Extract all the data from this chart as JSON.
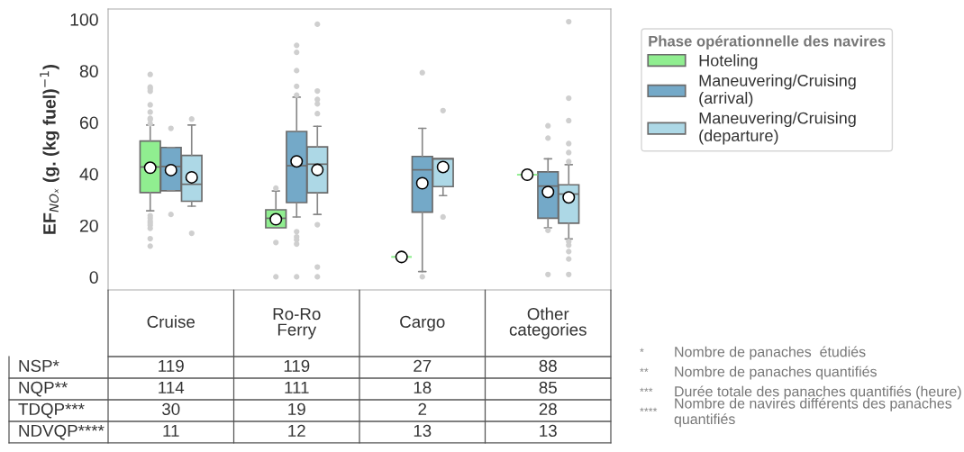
{
  "chart_data": {
    "type": "box",
    "categories": [
      "Cruise",
      "Ro-Ro\nFerry",
      "Cargo",
      "Other\ncategories"
    ],
    "ylabel": "EF$_{NOₓ}$ (g. (kg fuel)$^{−1}$)",
    "legend_title": "Phase opérationnelle des navires",
    "legend": "right",
    "grid": false,
    "ylim": [
      -5,
      104
    ],
    "yticks": [
      0,
      20,
      40,
      60,
      80,
      100
    ],
    "series": [
      {
        "name": "Hoteling",
        "color": "#90ee90",
        "boxes": [
          {
            "low": 25.7,
            "q1": 32.8,
            "median": 42.7,
            "q3": 52.8,
            "high": 59.0,
            "mean": 42.4,
            "outliers": [
              78.6,
              73.7,
              73.1,
              72.1,
              66.8,
              64.0,
              61.6,
              61.1,
              59.5,
              23.8,
              22.9,
              21.7,
              20.9,
              20.1,
              18.9,
              14.9,
              12.0
            ]
          },
          {
            "low": 19.1,
            "q1": 19.1,
            "median": 22.8,
            "q3": 26.1,
            "high": 33.4,
            "mean": 22.4,
            "outliers": [
              34.5,
              13.4,
              0.1
            ]
          },
          {
            "low": 7.8,
            "q1": 7.8,
            "median": 7.8,
            "q3": 7.8,
            "high": 7.8,
            "mean": 7.8
          },
          {
            "low": 39.7,
            "q1": 39.7,
            "median": 39.7,
            "q3": 39.7,
            "high": 39.7,
            "mean": 39.7
          }
        ]
      },
      {
        "name": "Maneuvering/Cruising\n(arrival)",
        "color": "#74a9c8",
        "boxes": [
          {
            "low": 33.5,
            "q1": 33.5,
            "median": 42.9,
            "q3": 50.3,
            "high": 50.3,
            "mean": 41.5,
            "outliers": [
              57.7,
              24.3
            ]
          },
          {
            "low": 23.3,
            "q1": 28.9,
            "median": 43.2,
            "q3": 56.5,
            "high": 69.8,
            "mean": 44.9,
            "outliers": [
              89.9,
              87.2,
              80.1,
              74.0,
              70.6,
              17.6,
              15.6,
              14.5,
              12.8,
              0.1
            ]
          },
          {
            "low": 2.1,
            "q1": 25.2,
            "median": 41.6,
            "q3": 46.8,
            "high": 57.7,
            "mean": 36.4,
            "outliers": [
              79.3,
              0.1
            ]
          },
          {
            "low": 19.1,
            "q1": 22.8,
            "median": 35.3,
            "q3": 40.8,
            "high": 45.9,
            "mean": 33.0,
            "outliers": [
              58.7,
              53.9,
              18.1,
              1.0
            ]
          }
        ]
      },
      {
        "name": "Maneuvering/Cruising\n(departure)",
        "color": "#add8e6",
        "boxes": [
          {
            "low": 27.5,
            "q1": 29.4,
            "median": 36.0,
            "q3": 47.2,
            "high": 59.0,
            "mean": 38.7,
            "outliers": [
              61.3,
              17.0
            ]
          },
          {
            "low": 24.3,
            "q1": 32.7,
            "median": 43.8,
            "q3": 50.5,
            "high": 58.5,
            "mean": 41.6,
            "outliers": [
              98.1,
              72.2,
              68.9,
              67.2,
              63.4,
              20.3,
              3.9,
              0.1
            ]
          },
          {
            "low": 31.6,
            "q1": 35.1,
            "median": 45.8,
            "q3": 46.0,
            "high": 46.0,
            "mean": 42.7,
            "outliers": [
              64.6,
              23.3
            ]
          },
          {
            "low": 14.8,
            "q1": 20.9,
            "median": 32.2,
            "q3": 35.8,
            "high": 43.6,
            "mean": 30.9,
            "outliers": [
              99.1,
              69.4,
              60.7,
              51.8,
              48.3,
              44.8,
              13.8,
              12.4,
              9.9,
              7.0,
              1.0
            ]
          }
        ]
      }
    ],
    "annotations": [
      "NSP*",
      "119",
      "119",
      "27",
      "88",
      "NQP**",
      "114",
      "111",
      "18",
      "85",
      "TDQP***",
      "30",
      "19",
      "2",
      "28",
      "NDVQP****",
      "11",
      "12",
      "13",
      "13",
      "*",
      "Nombre de panaches  étudiés",
      "**",
      "Nombre de panaches quantifiés",
      "***",
      "Durée totale des panaches quantifiés (heure)",
      "****",
      "Nombre de navires différents des panaches quantifiés"
    ]
  }
}
